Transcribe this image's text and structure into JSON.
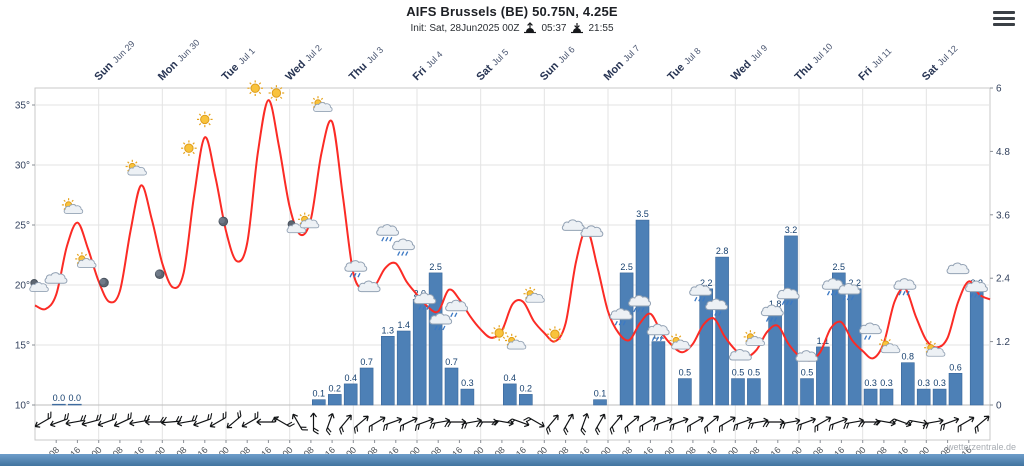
{
  "header": {
    "title": "AIFS Brussels (BE) 50.75N, 4.25E",
    "init": "Init: Sat, 28Jun2025 00Z",
    "sunrise": "05:37",
    "sunset": "21:55"
  },
  "watermark": "wetterzentrale.de",
  "menu": {
    "icon": "hamburger-menu-icon"
  },
  "chart_data": {
    "type": "meteogram (line + bar)",
    "title": "AIFS Brussels (BE) 50.75N, 4.25E",
    "subtitle": "Init: Sat, 28Jun2025 00Z",
    "sunrise": "05:37",
    "sunset": "21:55",
    "hours_total": 360,
    "temp_step_hours": 4,
    "grid": true,
    "legend": "none",
    "temp_axis": {
      "unit": "°C",
      "min": 10,
      "max": 35,
      "ticks": [
        10,
        15,
        20,
        25,
        30,
        35
      ]
    },
    "precip_axis": {
      "unit": "mm/6h",
      "min": 0,
      "max": 6,
      "tick_labels": [
        "0",
        "1.2",
        "2.4",
        "3.6",
        "4.8",
        "6"
      ]
    },
    "days": [
      {
        "wd": "Sun",
        "date": "Jun 29"
      },
      {
        "wd": "Mon",
        "date": "Jun 30"
      },
      {
        "wd": "Tue",
        "date": "Jul 1"
      },
      {
        "wd": "Wed",
        "date": "Jul 2"
      },
      {
        "wd": "Thu",
        "date": "Jul 3"
      },
      {
        "wd": "Fri",
        "date": "Jul 4"
      },
      {
        "wd": "Sat",
        "date": "Jul 5"
      },
      {
        "wd": "Sun",
        "date": "Jul 6"
      },
      {
        "wd": "Mon",
        "date": "Jul 7"
      },
      {
        "wd": "Tue",
        "date": "Jul 8"
      },
      {
        "wd": "Wed",
        "date": "Jul 9"
      },
      {
        "wd": "Thu",
        "date": "Jul 10"
      },
      {
        "wd": "Fri",
        "date": "Jul 11"
      },
      {
        "wd": "Sat",
        "date": "Jul 12"
      }
    ],
    "x_tick_labels": [
      "08",
      "16",
      "00",
      "08",
      "16",
      "00",
      "08",
      "16",
      "00",
      "08",
      "16",
      "00",
      "08",
      "16",
      "00",
      "08",
      "16",
      "00",
      "08",
      "16",
      "00",
      "08",
      "16",
      "00",
      "08",
      "16",
      "00",
      "08",
      "16",
      "00",
      "08",
      "16",
      "00",
      "08",
      "16",
      "00",
      "08",
      "16",
      "00",
      "08",
      "16",
      "00",
      "08",
      "16"
    ],
    "temperature_c": [
      18.3,
      18.0,
      19.2,
      23.2,
      25.2,
      23.0,
      20.3,
      18.6,
      19.5,
      24.5,
      28.3,
      25.5,
      21.8,
      19.8,
      21.0,
      27.5,
      32.3,
      29.0,
      24.5,
      22.0,
      23.5,
      31.0,
      35.4,
      31.5,
      26.5,
      24.2,
      25.5,
      31.0,
      33.6,
      27.5,
      21.0,
      19.6,
      19.9,
      21.4,
      21.8,
      20.3,
      19.2,
      18.2,
      17.8,
      19.6,
      18.8,
      17.4,
      16.3,
      15.6,
      16.2,
      18.4,
      18.6,
      17.0,
      16.0,
      15.3,
      16.8,
      22.0,
      24.6,
      21.5,
      17.8,
      16.0,
      15.4,
      16.8,
      17.6,
      16.1,
      15.0,
      14.4,
      15.1,
      16.7,
      17.2,
      15.7,
      14.6,
      14.0,
      14.6,
      16.1,
      16.6,
      15.1,
      14.1,
      13.7,
      14.4,
      16.4,
      16.9,
      15.4,
      14.5,
      13.9,
      15.2,
      18.6,
      19.7,
      17.4,
      15.4,
      14.8,
      15.6,
      18.6,
      20.3,
      19.2,
      18.8
    ],
    "precip_bars": [
      {
        "t": 9,
        "v": 0.0
      },
      {
        "t": 15,
        "v": 0.0
      },
      {
        "t": 107,
        "v": 0.1
      },
      {
        "t": 113,
        "v": 0.2
      },
      {
        "t": 119,
        "v": 0.4
      },
      {
        "t": 125,
        "v": 0.7
      },
      {
        "t": 133,
        "v": 1.3
      },
      {
        "t": 139,
        "v": 1.4
      },
      {
        "t": 145,
        "v": 2.0
      },
      {
        "t": 151,
        "v": 2.5
      },
      {
        "t": 157,
        "v": 0.7
      },
      {
        "t": 163,
        "v": 0.3
      },
      {
        "t": 179,
        "v": 0.4
      },
      {
        "t": 185,
        "v": 0.2
      },
      {
        "t": 213,
        "v": 0.1
      },
      {
        "t": 223,
        "v": 2.5
      },
      {
        "t": 229,
        "v": 3.5
      },
      {
        "t": 235,
        "v": 1.2
      },
      {
        "t": 245,
        "v": 0.5
      },
      {
        "t": 253,
        "v": 2.2
      },
      {
        "t": 259,
        "v": 2.8
      },
      {
        "t": 265,
        "v": 0.5
      },
      {
        "t": 271,
        "v": 0.5
      },
      {
        "t": 279,
        "v": 1.8
      },
      {
        "t": 285,
        "v": 3.2
      },
      {
        "t": 291,
        "v": 0.5
      },
      {
        "t": 297,
        "v": 1.1
      },
      {
        "t": 303,
        "v": 2.5
      },
      {
        "t": 309,
        "v": 2.2
      },
      {
        "t": 315,
        "v": 0.3
      },
      {
        "t": 321,
        "v": 0.3
      },
      {
        "t": 329,
        "v": 0.8
      },
      {
        "t": 335,
        "v": 0.3
      },
      {
        "t": 341,
        "v": 0.3
      },
      {
        "t": 347,
        "v": 0.6
      },
      {
        "t": 355,
        "v": 2.2
      }
    ],
    "weather_icons": [
      [
        1,
        19.8,
        "moon-cloud"
      ],
      [
        8,
        20.4,
        "cloud"
      ],
      [
        14,
        26.3,
        "sun-cloud"
      ],
      [
        19,
        21.8,
        "sun-cloud"
      ],
      [
        26,
        20.2,
        "moon"
      ],
      [
        38,
        29.5,
        "sun-cloud"
      ],
      [
        47,
        20.9,
        "moon"
      ],
      [
        58,
        31.4,
        "sun"
      ],
      [
        64,
        33.8,
        "sun"
      ],
      [
        71,
        25.3,
        "moon"
      ],
      [
        83,
        36.4,
        "sun"
      ],
      [
        91,
        36.0,
        "sun"
      ],
      [
        98,
        24.7,
        "moon-cloud"
      ],
      [
        103,
        25.1,
        "sun-cloud"
      ],
      [
        108,
        34.8,
        "sun-cloud"
      ],
      [
        121,
        21.4,
        "rain"
      ],
      [
        126,
        19.7,
        "cloud"
      ],
      [
        133,
        24.4,
        "rain"
      ],
      [
        139,
        23.2,
        "rain"
      ],
      [
        147,
        18.7,
        "rain"
      ],
      [
        153,
        17.0,
        "rain"
      ],
      [
        159,
        18.1,
        "drizzle"
      ],
      [
        175,
        16.0,
        "sun"
      ],
      [
        181,
        15.0,
        "sun-cloud"
      ],
      [
        188,
        18.9,
        "sun-cloud"
      ],
      [
        196,
        15.9,
        "sun"
      ],
      [
        203,
        24.8,
        "cloud"
      ],
      [
        210,
        24.3,
        "cloud"
      ],
      [
        221,
        17.4,
        "rain"
      ],
      [
        228,
        18.5,
        "rain"
      ],
      [
        235,
        16.1,
        "rain"
      ],
      [
        243,
        15.0,
        "sun-cloud"
      ],
      [
        251,
        19.4,
        "rain"
      ],
      [
        257,
        18.2,
        "rain"
      ],
      [
        266,
        14.0,
        "cloud"
      ],
      [
        271,
        15.3,
        "sun-cloud"
      ],
      [
        278,
        17.7,
        "rain"
      ],
      [
        284,
        19.1,
        "rain"
      ],
      [
        291,
        13.9,
        "cloud"
      ],
      [
        301,
        19.9,
        "rain"
      ],
      [
        307,
        19.5,
        "rain"
      ],
      [
        315,
        16.2,
        "drizzle"
      ],
      [
        322,
        14.7,
        "sun-cloud"
      ],
      [
        328,
        19.9,
        "rain"
      ],
      [
        339,
        14.4,
        "sun-cloud"
      ],
      [
        348,
        21.2,
        "cloud"
      ],
      [
        355,
        19.7,
        "rain"
      ]
    ],
    "wind_dir_deg_6h": [
      60,
      70,
      80,
      75,
      70,
      65,
      80,
      90,
      85,
      80,
      70,
      60,
      50,
      60,
      90,
      120,
      150,
      180,
      200,
      220,
      230,
      240,
      250,
      245,
      250,
      260,
      270,
      260,
      270,
      280,
      290,
      300,
      220,
      210,
      200,
      210,
      220,
      230,
      240,
      250,
      250,
      240,
      230,
      240,
      250,
      260,
      270,
      260,
      250,
      240,
      250,
      260,
      270,
      280,
      290,
      280,
      260,
      250,
      240,
      230
    ],
    "colors": {
      "temperature_line": "#fb2b25",
      "precip_bar": "#4d80b6",
      "precip_bar_stroke": "#3a679a",
      "bar_label": "#16406f",
      "grid": "#e3e3e3",
      "axis_text": "#33425e",
      "day_label": "#273453",
      "wind_barb": "#101214"
    }
  }
}
